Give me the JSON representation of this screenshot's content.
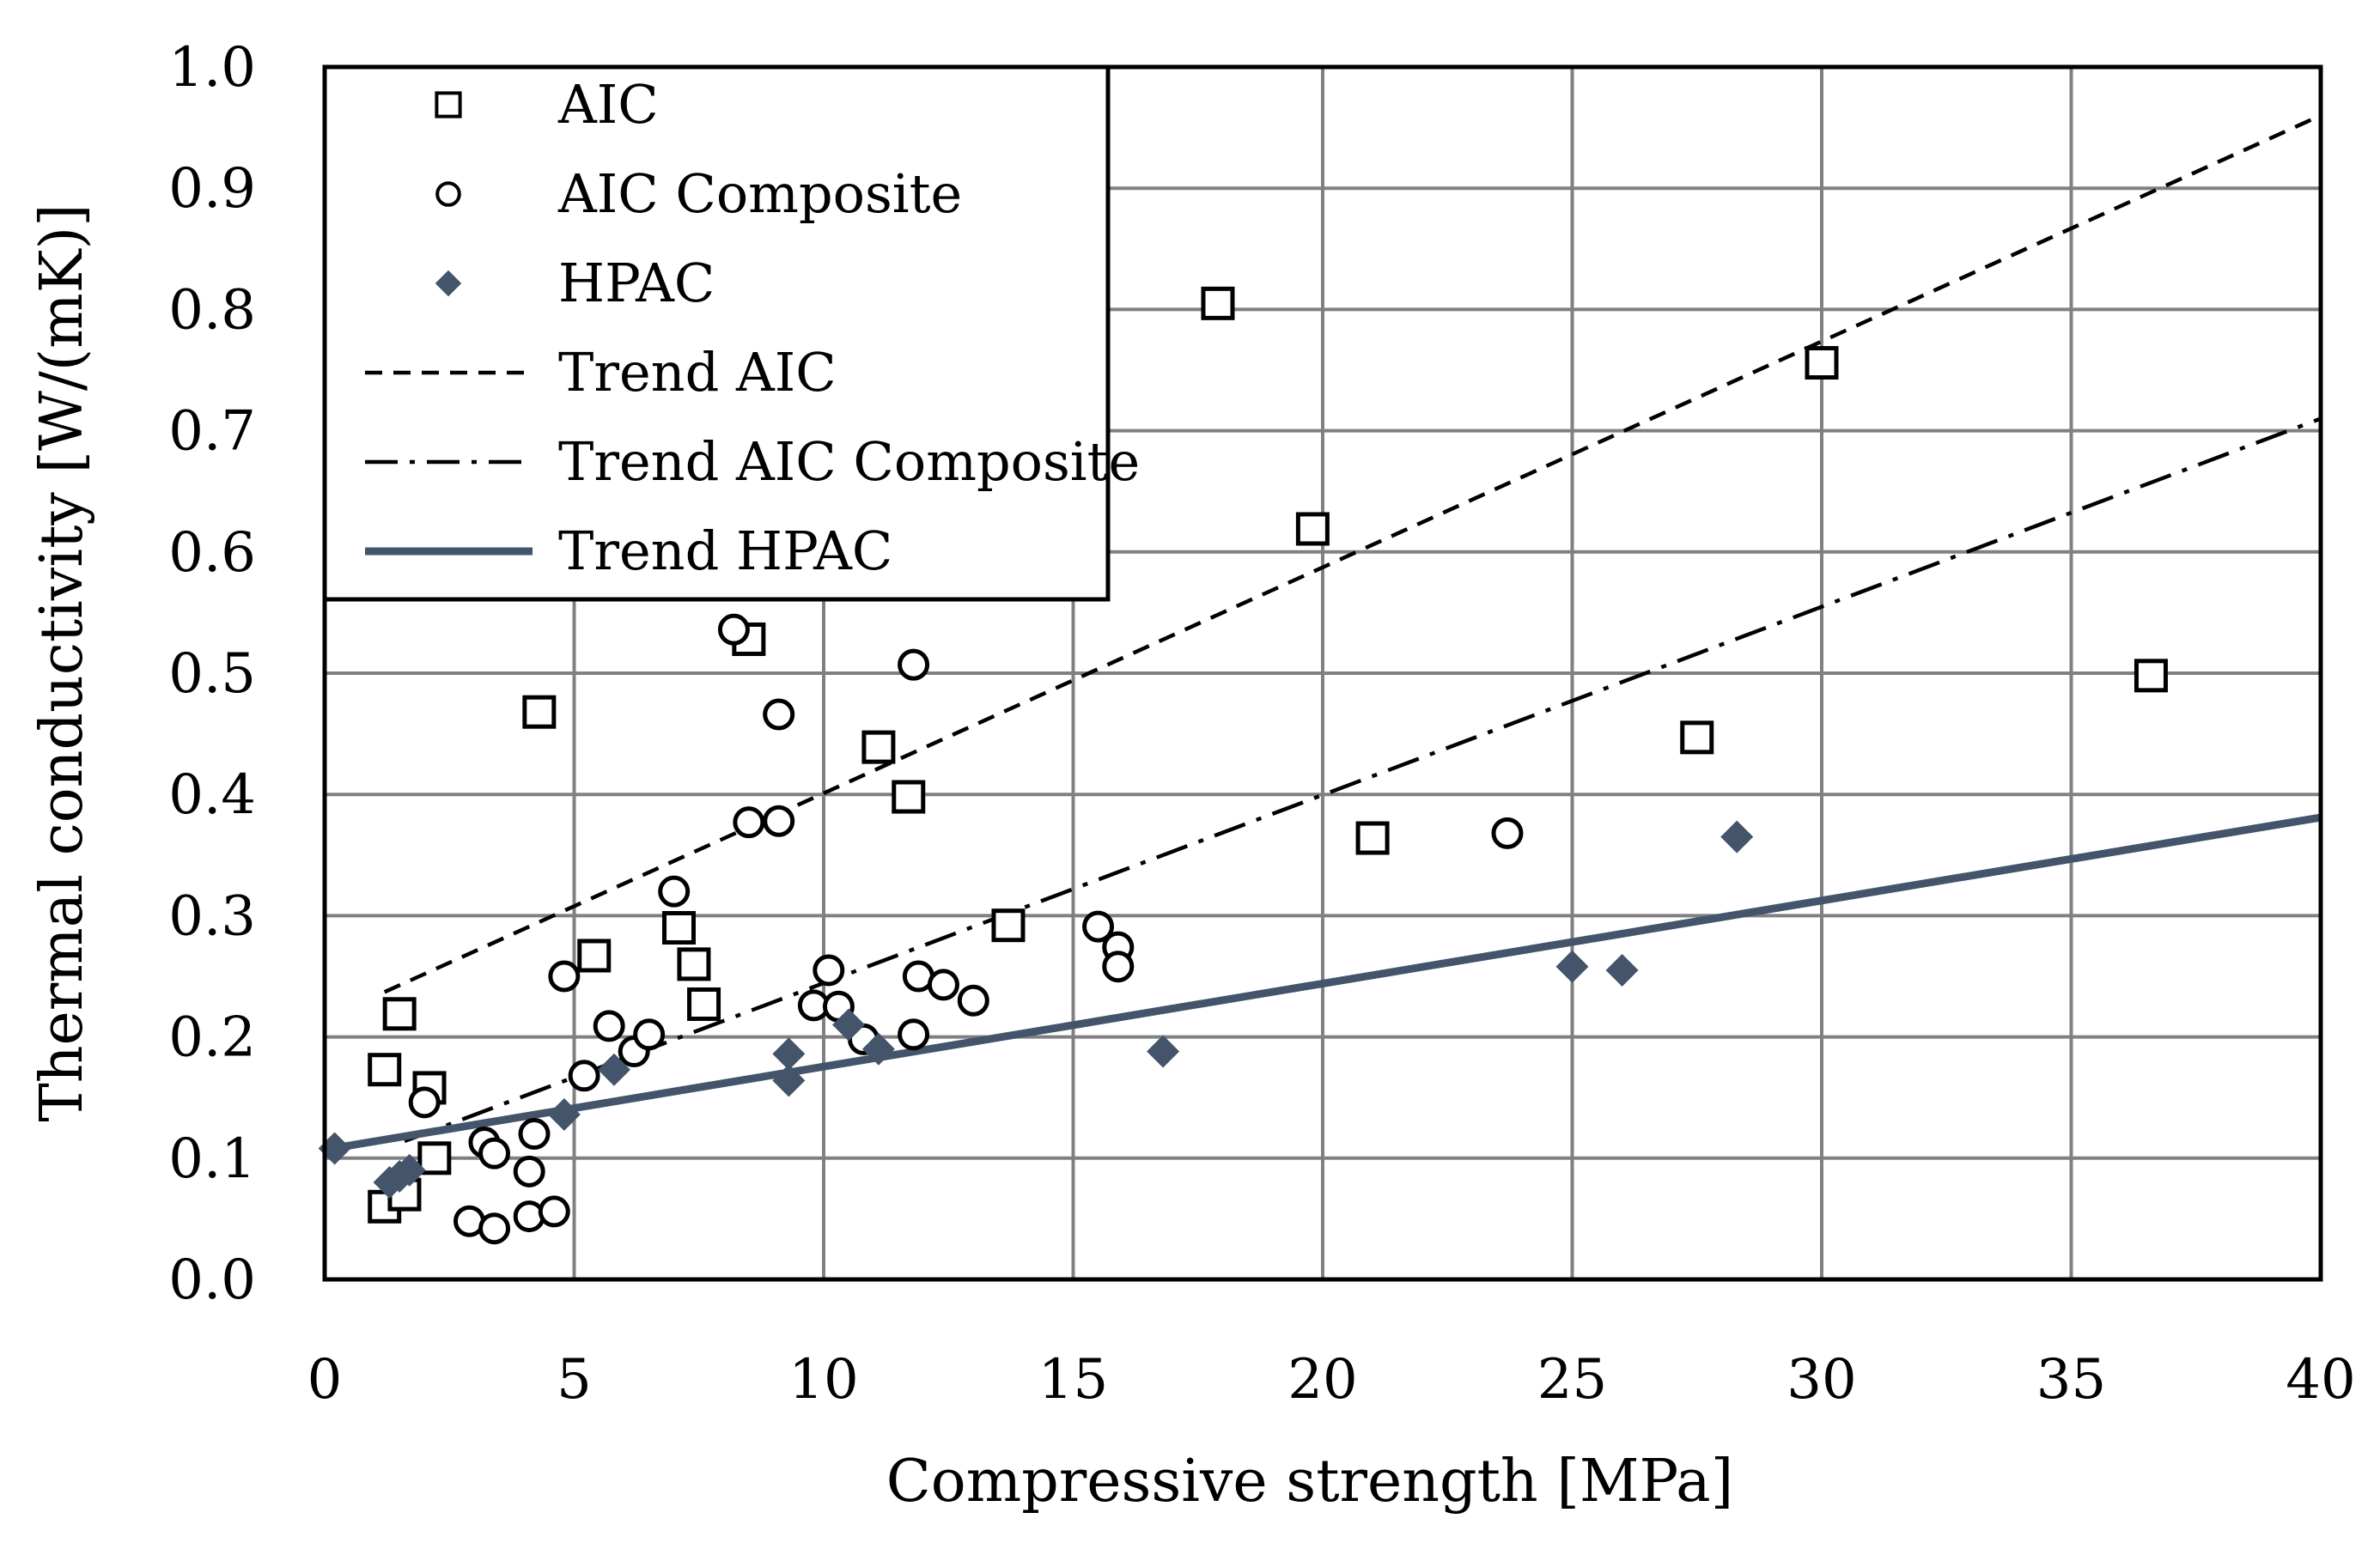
{
  "chart_data": {
    "type": "scatter",
    "title": "",
    "xlabel": "Compressive strength [MPa]",
    "ylabel": "Thermal conductivity [W/(mK)]",
    "xlim": [
      0,
      40
    ],
    "ylim": [
      0,
      1.0
    ],
    "x_ticks": [
      0,
      5,
      10,
      15,
      20,
      25,
      30,
      35,
      40
    ],
    "x_tick_labels": [
      "0",
      "5",
      "10",
      "15",
      "20",
      "25",
      "30",
      "35",
      "40"
    ],
    "y_ticks": [
      0,
      0.1,
      0.2,
      0.3,
      0.4,
      0.5,
      0.6,
      0.7,
      0.8,
      0.9,
      1.0
    ],
    "y_tick_labels": [
      "0.0",
      "0.1",
      "0.2",
      "0.3",
      "0.4",
      "0.5",
      "0.6",
      "0.7",
      "0.8",
      "0.9",
      "1.0"
    ],
    "grid": true,
    "legend_position": "top-left",
    "colors": {
      "hpac": "#44546a",
      "grid": "#808080",
      "black": "#000000"
    },
    "series": [
      {
        "name": "AIC",
        "marker": "square-open",
        "points": [
          [
            1.2,
            0.06
          ],
          [
            1.6,
            0.07
          ],
          [
            2.2,
            0.1
          ],
          [
            2.1,
            0.158
          ],
          [
            1.2,
            0.173
          ],
          [
            1.5,
            0.219
          ],
          [
            4.3,
            0.468
          ],
          [
            5.4,
            0.267
          ],
          [
            7.1,
            0.29
          ],
          [
            7.4,
            0.26
          ],
          [
            7.6,
            0.227
          ],
          [
            8.5,
            0.528
          ],
          [
            11.1,
            0.439
          ],
          [
            11.7,
            0.398
          ],
          [
            13.7,
            0.292
          ],
          [
            17.9,
            0.805
          ],
          [
            19.8,
            0.619
          ],
          [
            21.0,
            0.364
          ],
          [
            27.5,
            0.447
          ],
          [
            30.0,
            0.756
          ],
          [
            36.6,
            0.498
          ]
        ]
      },
      {
        "name": "AIC Composite",
        "marker": "circle-open",
        "points": [
          [
            2.0,
            0.146
          ],
          [
            2.9,
            0.048
          ],
          [
            3.2,
            0.113
          ],
          [
            3.4,
            0.104
          ],
          [
            3.4,
            0.042
          ],
          [
            4.1,
            0.089
          ],
          [
            4.1,
            0.052
          ],
          [
            4.2,
            0.12
          ],
          [
            4.6,
            0.056
          ],
          [
            4.8,
            0.25
          ],
          [
            5.2,
            0.168
          ],
          [
            5.7,
            0.209
          ],
          [
            6.2,
            0.188
          ],
          [
            6.5,
            0.202
          ],
          [
            7.0,
            0.32
          ],
          [
            8.2,
            0.536
          ],
          [
            8.5,
            0.377
          ],
          [
            9.1,
            0.466
          ],
          [
            9.1,
            0.378
          ],
          [
            9.8,
            0.226
          ],
          [
            10.1,
            0.255
          ],
          [
            10.3,
            0.225
          ],
          [
            10.8,
            0.198
          ],
          [
            11.8,
            0.507
          ],
          [
            11.8,
            0.202
          ],
          [
            11.9,
            0.25
          ],
          [
            12.4,
            0.243
          ],
          [
            13.0,
            0.23
          ],
          [
            15.5,
            0.291
          ],
          [
            15.9,
            0.274
          ],
          [
            15.9,
            0.258
          ],
          [
            23.7,
            0.368
          ]
        ]
      },
      {
        "name": "HPAC",
        "marker": "diamond-filled",
        "points": [
          [
            0.2,
            0.108
          ],
          [
            1.3,
            0.08
          ],
          [
            1.5,
            0.085
          ],
          [
            1.7,
            0.09
          ],
          [
            4.8,
            0.136
          ],
          [
            5.8,
            0.173
          ],
          [
            9.3,
            0.186
          ],
          [
            9.3,
            0.164
          ],
          [
            10.5,
            0.21
          ],
          [
            11.1,
            0.19
          ],
          [
            16.8,
            0.188
          ],
          [
            25.0,
            0.258
          ],
          [
            26.0,
            0.255
          ],
          [
            28.3,
            0.365
          ]
        ]
      },
      {
        "name": "Trend AIC",
        "style": "dashed",
        "line": [
          [
            1.2,
            0.237
          ],
          [
            40,
            0.96
          ]
        ]
      },
      {
        "name": "Trend AIC Composite",
        "style": "dash-dot",
        "line": [
          [
            1.6,
            0.114
          ],
          [
            40,
            0.71
          ]
        ]
      },
      {
        "name": "Trend HPAC",
        "style": "solid",
        "line": [
          [
            0,
            0.107
          ],
          [
            40,
            0.381
          ]
        ]
      }
    ]
  }
}
